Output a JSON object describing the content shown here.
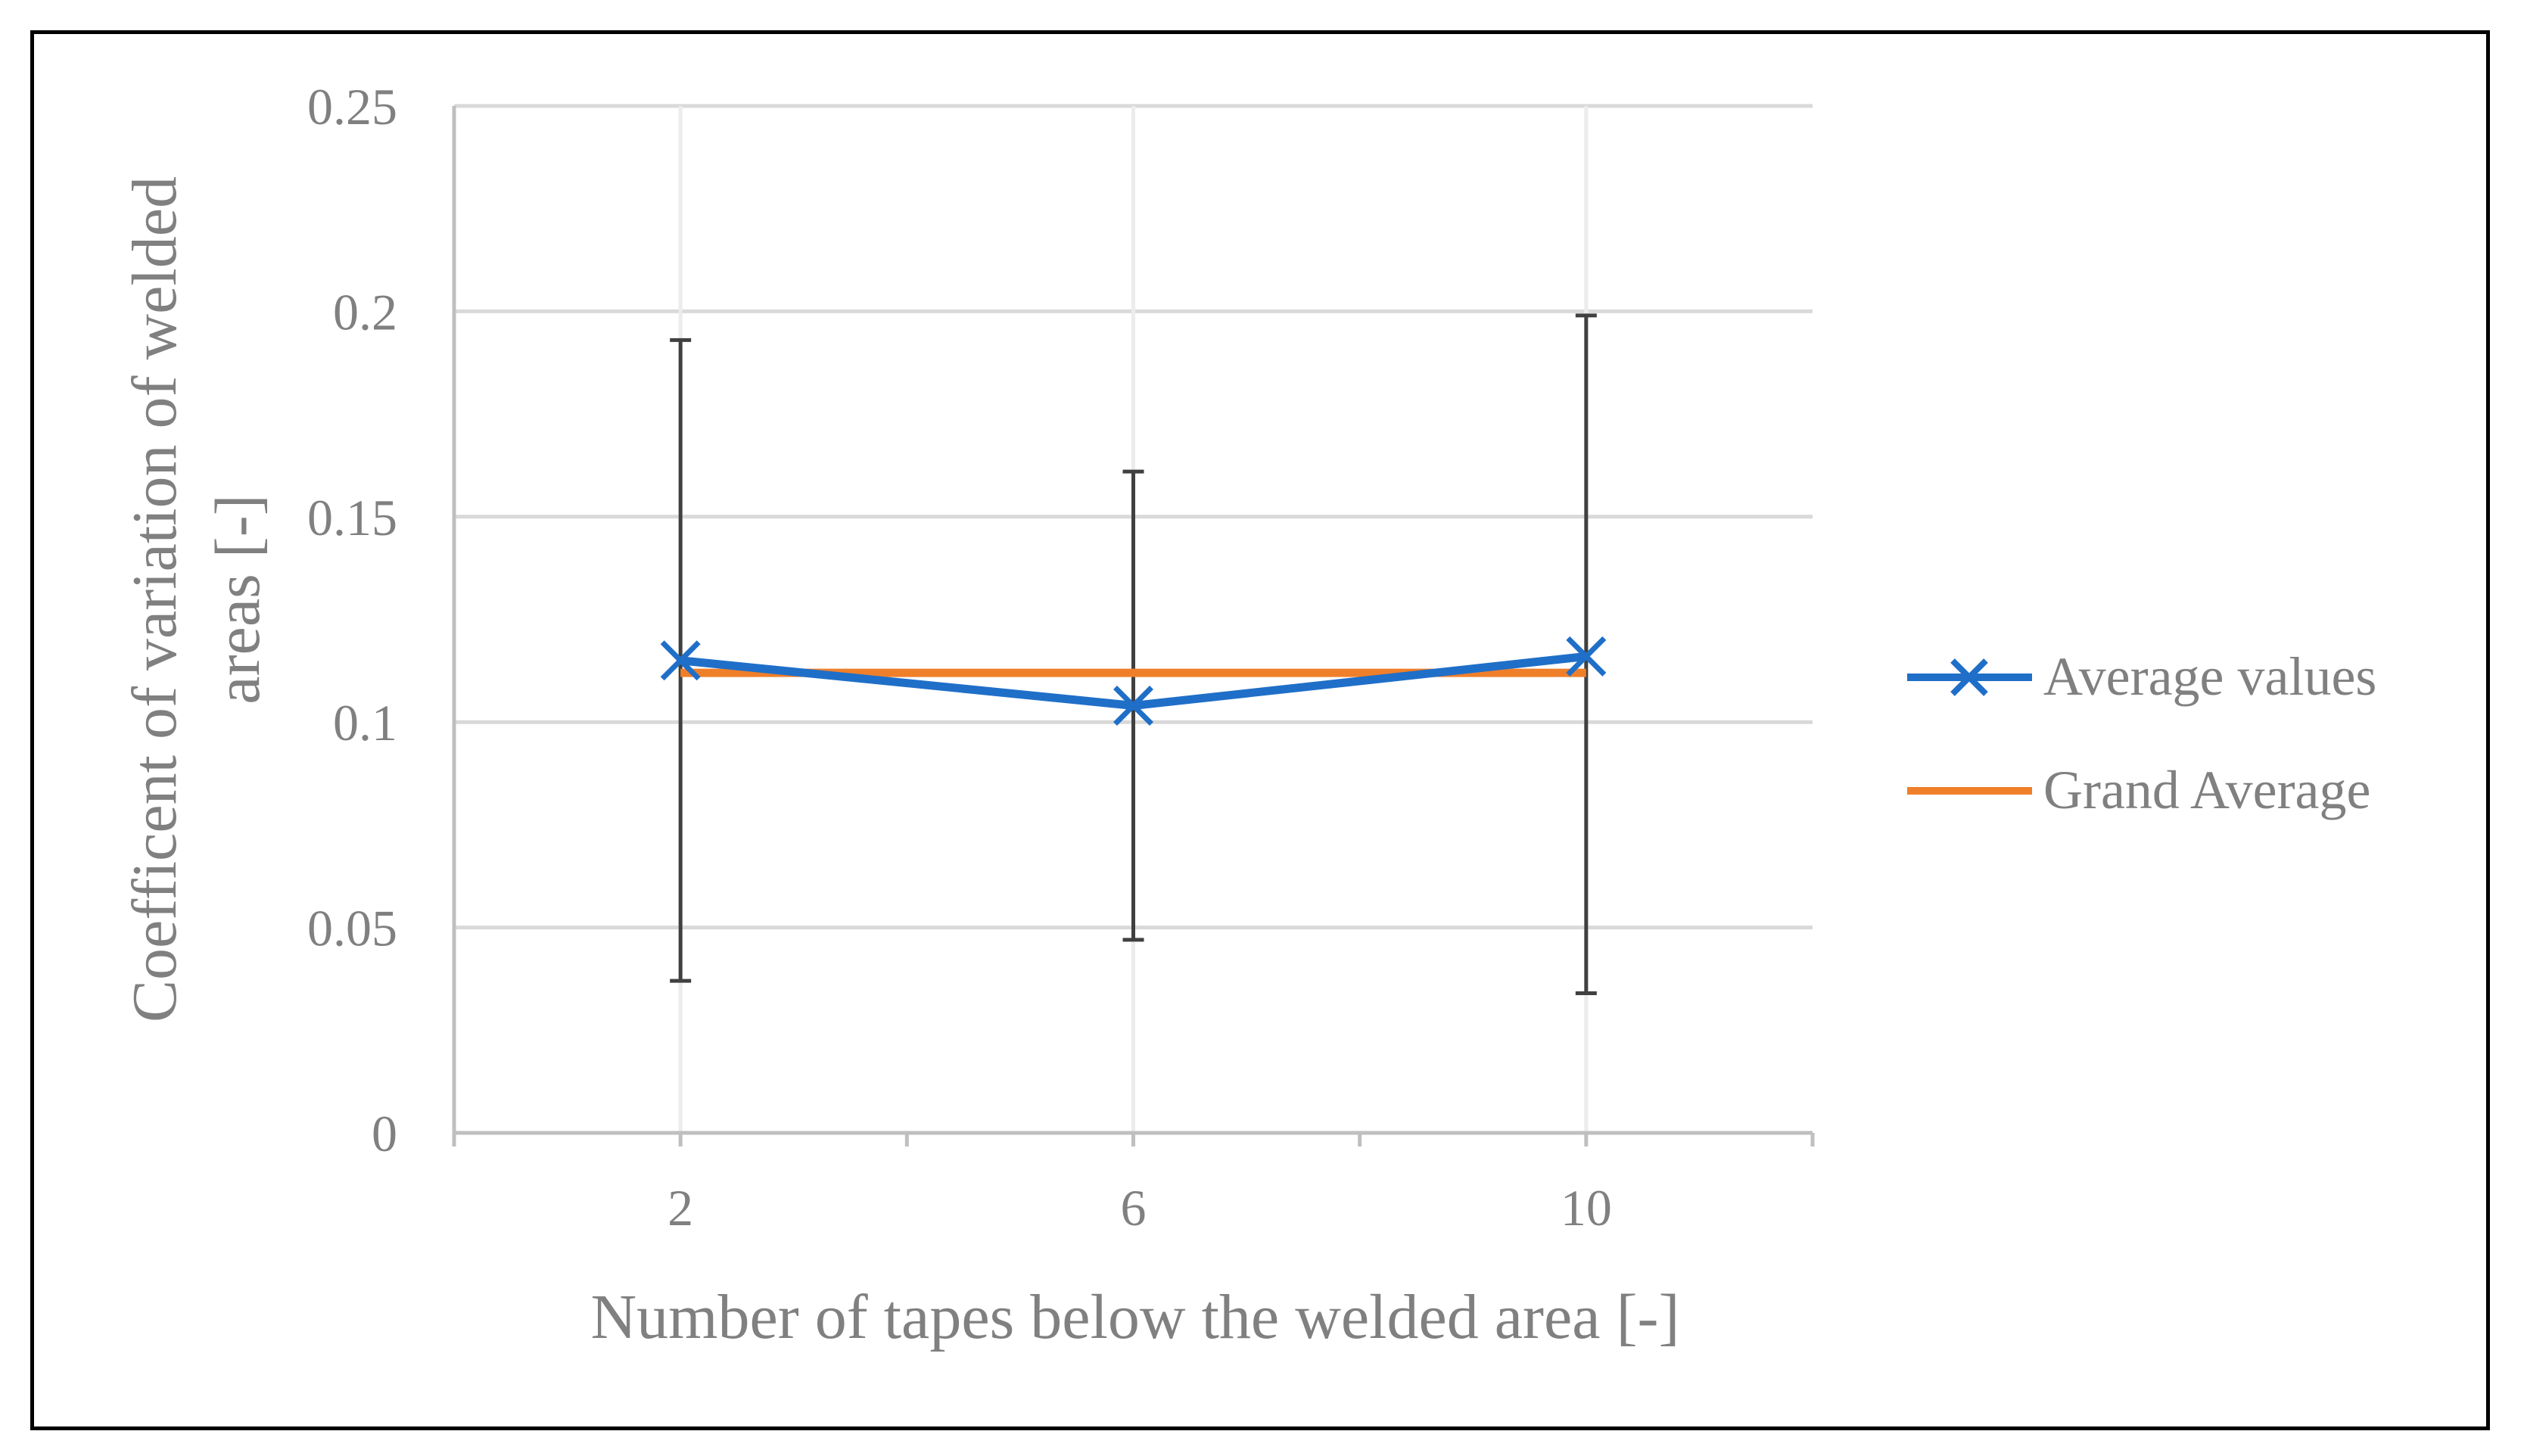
{
  "chart_data": {
    "type": "line",
    "xlabel": "Number of tapes below the welded area [-]",
    "ylabel_lines": [
      "Coefficent of variation of welded",
      "areas [-]"
    ],
    "categories": [
      "2",
      "6",
      "10"
    ],
    "ylim": [
      0,
      0.25
    ],
    "yticks": [
      0,
      0.05,
      0.1,
      0.15,
      0.2,
      0.25
    ],
    "ytick_labels": [
      "0",
      "0.05",
      "0.1",
      "0.15",
      "0.2",
      "0.25"
    ],
    "grid": true,
    "legend_position": "right",
    "series": [
      {
        "name": "Average values",
        "values": [
          0.115,
          0.104,
          0.116
        ],
        "error_low": [
          0.037,
          0.047,
          0.034
        ],
        "error_high": [
          0.193,
          0.161,
          0.199
        ],
        "color": "#1f6fc8",
        "marker": "x"
      },
      {
        "name": "Grand Average",
        "values": [
          0.112,
          0.112,
          0.112
        ],
        "color": "#f07f2a",
        "marker": "none"
      }
    ],
    "colors": {
      "grid": "#d9d9d9",
      "axis": "#bfbfbf",
      "error_bar": "#404040",
      "text": "#808080"
    }
  }
}
